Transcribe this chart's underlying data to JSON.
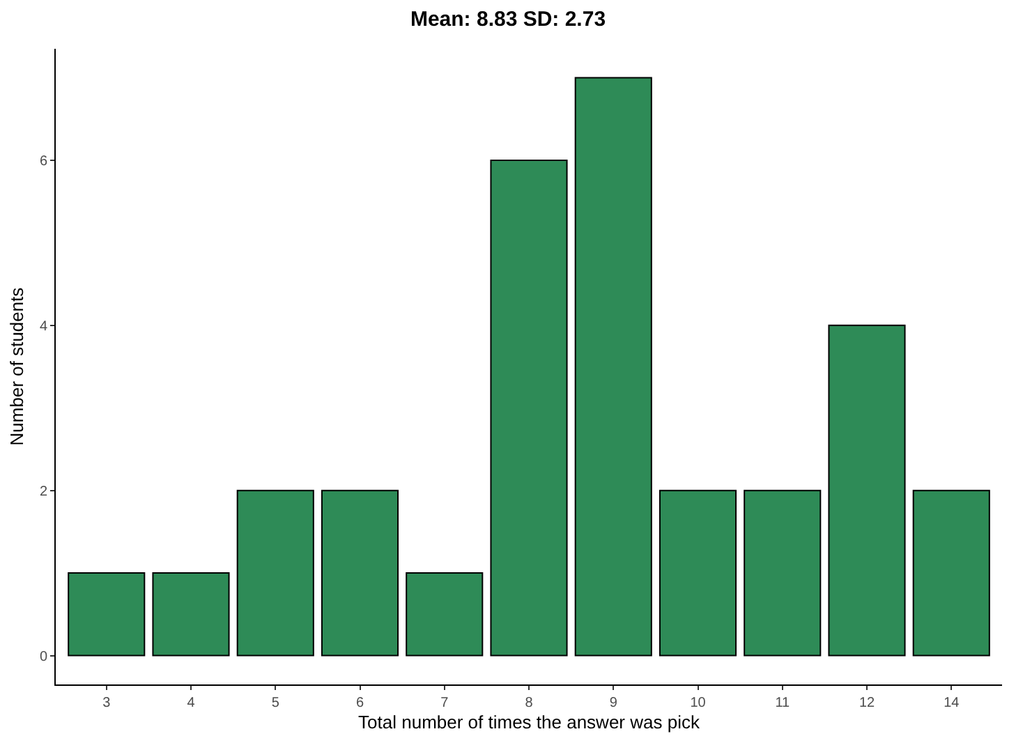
{
  "chart_data": {
    "type": "bar",
    "title": "Mean: 8.83 SD: 2.73",
    "xlabel": "Total number of times the answer was pick",
    "ylabel": "Number of students",
    "categories": [
      "3",
      "4",
      "5",
      "6",
      "7",
      "8",
      "9",
      "10",
      "11",
      "12",
      "14"
    ],
    "values": [
      1,
      1,
      2,
      2,
      1,
      6,
      7,
      2,
      2,
      4,
      2
    ],
    "color": "#2e8b57",
    "ylim": [
      -0.35,
      7.35
    ],
    "yticks": [
      0,
      2,
      4,
      6
    ]
  }
}
